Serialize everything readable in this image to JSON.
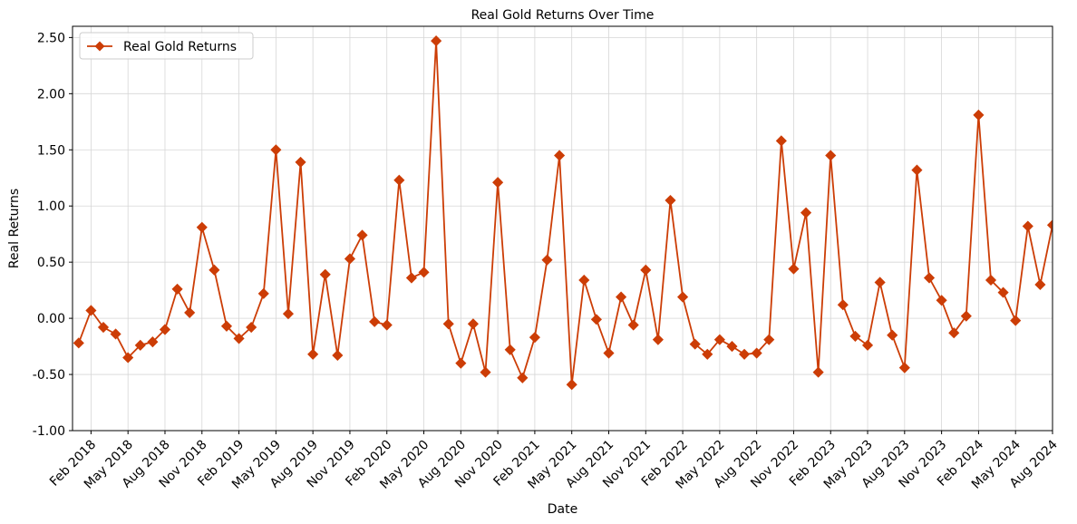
{
  "chart_data": {
    "type": "line",
    "title": "Real Gold Returns Over Time",
    "xlabel": "Date",
    "ylabel": "Real Returns",
    "ylim": [
      -1.0,
      2.6
    ],
    "yticks": [
      -1.0,
      -0.5,
      0.0,
      0.5,
      1.0,
      1.5,
      2.0,
      2.5
    ],
    "ytick_labels": [
      "-1.00",
      "-0.50",
      "0.00",
      "0.50",
      "1.00",
      "1.50",
      "2.00",
      "2.50"
    ],
    "x_start": "Feb 2018",
    "xtick_labels": [
      "Feb 2018",
      "May 2018",
      "Aug 2018",
      "Nov 2018",
      "Feb 2019",
      "May 2019",
      "Aug 2019",
      "Nov 2019",
      "Feb 2020",
      "May 2020",
      "Aug 2020",
      "Nov 2020",
      "Feb 2021",
      "May 2021",
      "Aug 2021",
      "Nov 2021",
      "Feb 2022",
      "May 2022",
      "Aug 2022",
      "Nov 2022",
      "Feb 2023",
      "May 2023",
      "Aug 2023",
      "Nov 2023",
      "Feb 2024",
      "May 2024",
      "Aug 2024"
    ],
    "grid": true,
    "legend_position": "top-left",
    "series": [
      {
        "name": "Real Gold Returns",
        "color": "#cc3d06",
        "marker": "diamond",
        "x": [
          "Jan 2018",
          "Feb 2018",
          "Mar 2018",
          "Apr 2018",
          "May 2018",
          "Jun 2018",
          "Jul 2018",
          "Aug 2018",
          "Sep 2018",
          "Oct 2018",
          "Nov 2018",
          "Dec 2018",
          "Jan 2019",
          "Feb 2019",
          "Mar 2019",
          "Apr 2019",
          "May 2019",
          "Jun 2019",
          "Jul 2019",
          "Aug 2019",
          "Sep 2019",
          "Oct 2019",
          "Nov 2019",
          "Dec 2019",
          "Jan 2020",
          "Feb 2020",
          "Mar 2020",
          "Apr 2020",
          "May 2020",
          "Jun 2020",
          "Jul 2020",
          "Aug 2020",
          "Sep 2020",
          "Oct 2020",
          "Nov 2020",
          "Dec 2020",
          "Jan 2021",
          "Feb 2021",
          "Mar 2021",
          "Apr 2021",
          "May 2021",
          "Jun 2021",
          "Jul 2021",
          "Aug 2021",
          "Sep 2021",
          "Oct 2021",
          "Nov 2021",
          "Dec 2021",
          "Jan 2022",
          "Feb 2022",
          "Mar 2022",
          "Apr 2022",
          "May 2022",
          "Jun 2022",
          "Jul 2022",
          "Aug 2022",
          "Sep 2022",
          "Oct 2022",
          "Nov 2022",
          "Dec 2022",
          "Jan 2023",
          "Feb 2023",
          "Mar 2023",
          "Apr 2023",
          "May 2023",
          "Jun 2023",
          "Jul 2023",
          "Aug 2023",
          "Sep 2023",
          "Oct 2023",
          "Nov 2023",
          "Dec 2023",
          "Jan 2024",
          "Feb 2024",
          "Mar 2024",
          "Apr 2024",
          "May 2024",
          "Jun 2024",
          "Jul 2024",
          "Aug 2024"
        ],
        "values": [
          -0.22,
          0.07,
          -0.08,
          -0.14,
          -0.35,
          -0.24,
          -0.21,
          -0.1,
          0.26,
          0.05,
          0.81,
          0.43,
          -0.07,
          -0.18,
          -0.08,
          0.22,
          1.5,
          0.04,
          1.39,
          -0.32,
          0.39,
          -0.33,
          0.53,
          0.74,
          -0.03,
          -0.06,
          1.23,
          0.36,
          0.41,
          2.47,
          -0.05,
          -0.4,
          -0.05,
          -0.48,
          1.21,
          -0.28,
          -0.53,
          -0.17,
          0.52,
          1.45,
          -0.59,
          0.34,
          -0.01,
          -0.31,
          0.19,
          -0.06,
          0.43,
          -0.19,
          1.05,
          0.19,
          -0.23,
          -0.32,
          -0.19,
          -0.25,
          -0.32,
          -0.31,
          -0.19,
          1.58,
          0.44,
          0.94,
          -0.48,
          1.45,
          0.12,
          -0.16,
          -0.24,
          0.32,
          -0.15,
          -0.44,
          1.32,
          0.36,
          0.16,
          -0.13,
          0.02,
          1.81,
          0.34,
          0.23,
          -0.02,
          0.82,
          0.3,
          0.83
        ]
      }
    ]
  }
}
